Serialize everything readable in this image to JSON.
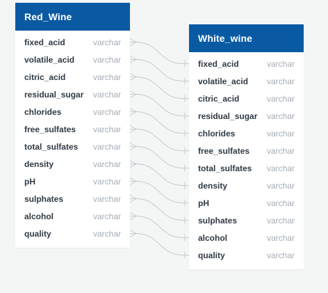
{
  "colors": {
    "header_bg": "#0a5aa3",
    "canvas_bg": "#f4f6f6",
    "link": "#c4cacf"
  },
  "tables": [
    {
      "name": "Red_Wine",
      "columns": [
        {
          "name": "fixed_acid",
          "type": "varchar"
        },
        {
          "name": "volatile_acid",
          "type": "varchar"
        },
        {
          "name": "citric_acid",
          "type": "varchar"
        },
        {
          "name": "residual_sugar",
          "type": "varchar"
        },
        {
          "name": "chlorides",
          "type": "varchar"
        },
        {
          "name": "free_sulfates",
          "type": "varchar"
        },
        {
          "name": "total_sulfates",
          "type": "varchar"
        },
        {
          "name": "density",
          "type": "varchar"
        },
        {
          "name": "pH",
          "type": "varchar"
        },
        {
          "name": "sulphates",
          "type": "varchar"
        },
        {
          "name": "alcohol",
          "type": "varchar"
        },
        {
          "name": "quality",
          "type": "varchar"
        }
      ]
    },
    {
      "name": "White_wine",
      "columns": [
        {
          "name": "fixed_acid",
          "type": "varchar"
        },
        {
          "name": "volatile_acid",
          "type": "varchar"
        },
        {
          "name": "citric_acid",
          "type": "varchar"
        },
        {
          "name": "residual_sugar",
          "type": "varchar"
        },
        {
          "name": "chlorides",
          "type": "varchar"
        },
        {
          "name": "free_sulfates",
          "type": "varchar"
        },
        {
          "name": "total_sulfates",
          "type": "varchar"
        },
        {
          "name": "density",
          "type": "varchar"
        },
        {
          "name": "pH",
          "type": "varchar"
        },
        {
          "name": "sulphates",
          "type": "varchar"
        },
        {
          "name": "alcohol",
          "type": "varchar"
        },
        {
          "name": "quality",
          "type": "varchar"
        }
      ]
    }
  ],
  "relationships": [
    {
      "from": "Red_Wine.fixed_acid",
      "to": "White_wine.fixed_acid",
      "from_end": "many",
      "to_end": "one"
    },
    {
      "from": "Red_Wine.volatile_acid",
      "to": "White_wine.volatile_acid",
      "from_end": "many",
      "to_end": "one"
    },
    {
      "from": "Red_Wine.citric_acid",
      "to": "White_wine.citric_acid",
      "from_end": "many",
      "to_end": "one"
    },
    {
      "from": "Red_Wine.residual_sugar",
      "to": "White_wine.residual_sugar",
      "from_end": "many",
      "to_end": "one"
    },
    {
      "from": "Red_Wine.chlorides",
      "to": "White_wine.chlorides",
      "from_end": "many",
      "to_end": "one"
    },
    {
      "from": "Red_Wine.free_sulfates",
      "to": "White_wine.free_sulfates",
      "from_end": "many",
      "to_end": "one"
    },
    {
      "from": "Red_Wine.total_sulfates",
      "to": "White_wine.total_sulfates",
      "from_end": "many",
      "to_end": "one"
    },
    {
      "from": "Red_Wine.density",
      "to": "White_wine.density",
      "from_end": "many",
      "to_end": "one"
    },
    {
      "from": "Red_Wine.pH",
      "to": "White_wine.pH",
      "from_end": "many",
      "to_end": "one"
    },
    {
      "from": "Red_Wine.sulphates",
      "to": "White_wine.sulphates",
      "from_end": "many",
      "to_end": "one"
    },
    {
      "from": "Red_Wine.alcohol",
      "to": "White_wine.alcohol",
      "from_end": "many",
      "to_end": "one"
    },
    {
      "from": "Red_Wine.quality",
      "to": "White_wine.quality",
      "from_end": "many",
      "to_end": "one"
    }
  ]
}
